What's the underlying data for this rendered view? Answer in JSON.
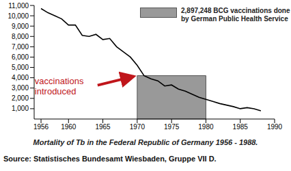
{
  "chart_data": {
    "type": "line",
    "title": "Mortality of Tb in the Federal Republic of Germany 1956 - 1988.",
    "source": "Source: Statistisches Bundesamt Wiesbaden, Gruppe VII D.",
    "x": [
      1956,
      1957,
      1958,
      1959,
      1960,
      1961,
      1962,
      1963,
      1964,
      1965,
      1966,
      1967,
      1968,
      1969,
      1970,
      1971,
      1972,
      1973,
      1974,
      1975,
      1976,
      1977,
      1978,
      1979,
      1980,
      1981,
      1982,
      1983,
      1984,
      1985,
      1986,
      1987,
      1988
    ],
    "values": [
      10700,
      10300,
      10000,
      9700,
      9100,
      9100,
      8100,
      8000,
      8200,
      7700,
      7800,
      7000,
      6500,
      6000,
      5200,
      4200,
      3900,
      3700,
      3200,
      3300,
      2900,
      2700,
      2400,
      2100,
      1900,
      1700,
      1500,
      1350,
      1200,
      1000,
      1100,
      1000,
      800
    ],
    "color": "#000000",
    "xlim": [
      1955,
      1990
    ],
    "xticks": [
      1956,
      1960,
      1965,
      1970,
      1975,
      1980,
      1985,
      1990
    ],
    "ylim": [
      0,
      11000
    ],
    "yticks": [
      {
        "value": 1000,
        "label": "1,000"
      },
      {
        "value": 2000,
        "label": "2,000"
      },
      {
        "value": 3000,
        "label": "3,000"
      },
      {
        "value": 4000,
        "label": "4,000"
      },
      {
        "value": 5000,
        "label": "5,000"
      },
      {
        "value": 6000,
        "label": "6,000"
      },
      {
        "value": 7000,
        "label": "7,000"
      },
      {
        "value": 8000,
        "label": "8,000"
      },
      {
        "value": 9000,
        "label": "9,000"
      },
      {
        "value": 10000,
        "label": "10,000"
      },
      {
        "value": 11000,
        "label": "11,000"
      }
    ],
    "grid": false,
    "shaded_region": {
      "x": [
        1970,
        1980
      ],
      "y": [
        0,
        4200
      ],
      "color": "#999999",
      "text": [
        "2,897,248 BCG vaccinations done",
        "by German Public Health Service"
      ]
    },
    "annotation": {
      "text": [
        "vaccinations",
        "introduced"
      ],
      "x": 1970,
      "y": 4200,
      "color": "#c0161b"
    }
  }
}
